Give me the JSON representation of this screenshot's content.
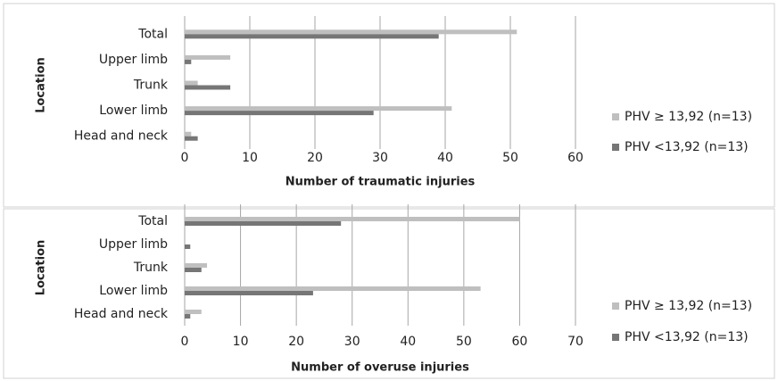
{
  "chart_data": [
    {
      "type": "bar",
      "orientation": "horizontal",
      "xlabel": "Number of traumatic injuries",
      "ylabel": "Location",
      "categories": [
        "Total",
        "Upper limb",
        "Trunk",
        "Lower limb",
        "Head and neck"
      ],
      "series": [
        {
          "name": "PHV ≥ 13,92 (n=13)",
          "color": "#bfbfbf",
          "values": [
            51,
            7,
            2,
            41,
            1
          ]
        },
        {
          "name": "PHV <13,92 (n=13)",
          "color": "#767676",
          "values": [
            39,
            1,
            7,
            29,
            2
          ]
        }
      ],
      "xlim": [
        0,
        60
      ],
      "xticks": [
        0,
        10,
        20,
        30,
        40,
        50,
        60
      ],
      "grid": true,
      "legend": "right"
    },
    {
      "type": "bar",
      "orientation": "horizontal",
      "xlabel": "Number of overuse injuries",
      "ylabel": "Location",
      "categories": [
        "Total",
        "Upper limb",
        "Trunk",
        "Lower limb",
        "Head and neck"
      ],
      "series": [
        {
          "name": "PHV ≥ 13,92 (n=13)",
          "color": "#bfbfbf",
          "values": [
            60,
            0,
            4,
            53,
            3
          ]
        },
        {
          "name": "PHV <13,92 (n=13)",
          "color": "#767676",
          "values": [
            28,
            1,
            3,
            23,
            1
          ]
        }
      ],
      "xlim": [
        0,
        70
      ],
      "xticks": [
        0,
        10,
        20,
        30,
        40,
        50,
        60,
        70
      ],
      "grid": true,
      "legend": "right"
    }
  ]
}
